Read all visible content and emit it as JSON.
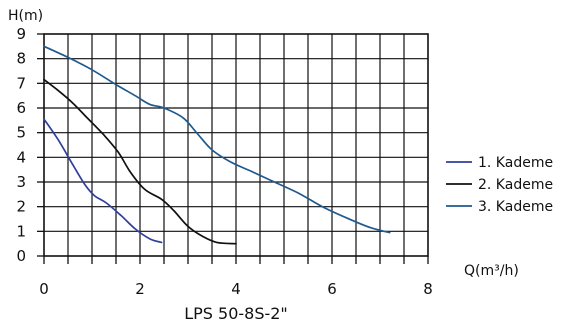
{
  "chart_data": {
    "type": "line",
    "title": "",
    "caption": "LPS 50-8S-2\"",
    "ylabel": "H(m)",
    "xlabel": "Q(m³/h)",
    "xlim": [
      0,
      8
    ],
    "ylim": [
      0,
      9
    ],
    "x_tick_labels": [
      "0",
      "2",
      "4",
      "6",
      "8"
    ],
    "y_tick_labels": [
      "0",
      "1",
      "2",
      "3",
      "4",
      "5",
      "6",
      "7",
      "8",
      "9"
    ],
    "grid": true,
    "legend_position": "right",
    "series": [
      {
        "name": "1. Kademe",
        "color": "#2f3f9e",
        "points": [
          [
            0,
            5.55
          ],
          [
            0.3,
            4.7
          ],
          [
            0.6,
            3.7
          ],
          [
            0.85,
            2.9
          ],
          [
            1.05,
            2.45
          ],
          [
            1.3,
            2.15
          ],
          [
            1.6,
            1.65
          ],
          [
            1.9,
            1.1
          ],
          [
            2.2,
            0.7
          ],
          [
            2.45,
            0.55
          ]
        ]
      },
      {
        "name": "2. Kademe",
        "color": "#111111",
        "points": [
          [
            0,
            7.15
          ],
          [
            0.3,
            6.7
          ],
          [
            0.6,
            6.2
          ],
          [
            0.9,
            5.6
          ],
          [
            1.25,
            4.9
          ],
          [
            1.55,
            4.2
          ],
          [
            1.8,
            3.4
          ],
          [
            2.1,
            2.7
          ],
          [
            2.45,
            2.3
          ],
          [
            2.7,
            1.85
          ],
          [
            3.0,
            1.2
          ],
          [
            3.3,
            0.8
          ],
          [
            3.6,
            0.55
          ],
          [
            4.0,
            0.5
          ]
        ]
      },
      {
        "name": "3. Kademe",
        "color": "#1f5a8f",
        "points": [
          [
            0,
            8.5
          ],
          [
            0.5,
            8.05
          ],
          [
            1.0,
            7.55
          ],
          [
            1.5,
            6.95
          ],
          [
            1.9,
            6.5
          ],
          [
            2.2,
            6.15
          ],
          [
            2.5,
            6.0
          ],
          [
            2.9,
            5.6
          ],
          [
            3.2,
            4.95
          ],
          [
            3.5,
            4.3
          ],
          [
            3.9,
            3.8
          ],
          [
            4.3,
            3.45
          ],
          [
            4.8,
            3.0
          ],
          [
            5.3,
            2.55
          ],
          [
            5.8,
            2.0
          ],
          [
            6.3,
            1.55
          ],
          [
            6.8,
            1.15
          ],
          [
            7.2,
            0.95
          ]
        ]
      }
    ]
  }
}
